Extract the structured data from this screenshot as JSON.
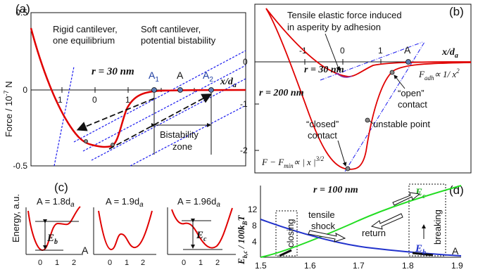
{
  "panel_a": {
    "label": "(a)",
    "y_label": "Force / 10",
    "y_label_exp": "-7",
    "y_label_unit": " N",
    "y_ticks": [
      "0.5",
      "0",
      "-0.5"
    ],
    "x_ticks": [
      "-1",
      "0",
      "1"
    ],
    "x_axis_label": "x/d",
    "x_axis_sub": "a",
    "r_label": "r = 30 nm",
    "rigid_label_1": "Rigid cantilever,",
    "rigid_label_2": "one equilibrium",
    "soft_label_1": "Soft cantilever,",
    "soft_label_2": "potential bistability",
    "point_A1": "A",
    "point_A1_sub": "1",
    "point_A": "A",
    "point_A2": "A",
    "point_A2_sub": "2",
    "zone_label_1": "Bistability",
    "zone_label_2": "zone"
  },
  "panel_b": {
    "label": "(b)",
    "title_1": "Tensile elastic force induced",
    "title_2": "in asperity by adhesion",
    "y_ticks": [
      "0",
      "-1",
      "-2"
    ],
    "x_ticks": [
      "-1",
      "0",
      "1"
    ],
    "x_axis_label": "x/d",
    "x_axis_sub": "a",
    "point_A": "A",
    "r30": "r = 30 nm",
    "r200": "r = 200 nm",
    "fadh_label": "F",
    "fadh_sub": "adh",
    "fadh_rel": "∝ 1/ x",
    "fadh_exp": "2",
    "open_1": "“open”",
    "open_2": "contact",
    "closed_1": "“closed”",
    "closed_2": "contact",
    "unstable": "unstable point",
    "fmin_F": "F − F",
    "fmin_sub": "min",
    "fmin_rel": "∝ | x |",
    "fmin_exp": "3/2"
  },
  "panel_c": {
    "label": "(c)",
    "y_label": "Energy, a.u.",
    "plot1_title": "A = 1.8d",
    "plot2_title": "A = 1.9d",
    "plot3_title": "A = 1.96d",
    "title_sub": "a",
    "eb": "E",
    "eb_sub": "b",
    "ec": "E",
    "ec_sub": "c",
    "axis_A": "A",
    "x_ticks": [
      "0",
      "1",
      "2"
    ]
  },
  "panel_d": {
    "label": "(d)",
    "r_label": "r = 100 nm",
    "y_label_main": "E",
    "y_label_sub": "b,c",
    "y_label_mid": " / 100k",
    "y_label_sub2": "B",
    "y_label_end": "T",
    "y_ticks": [
      "12",
      "8",
      "4"
    ],
    "x_ticks": [
      "1.5",
      "1.6",
      "1.7",
      "1.8",
      "1.9"
    ],
    "closing": "closing",
    "tensile_1": "tensile",
    "tensile_2": "shock",
    "return": "return",
    "breaking": "breaking",
    "ec": "E",
    "ec_sub": "c",
    "eb": "E",
    "eb_sub": "b",
    "axis_A": "A",
    "colors": {
      "ec": "#22dd22",
      "eb": "#2233cc"
    }
  },
  "colors": {
    "curve": "#e00000",
    "dashed": "#1a1aee",
    "marker": "#5a7ab0"
  }
}
